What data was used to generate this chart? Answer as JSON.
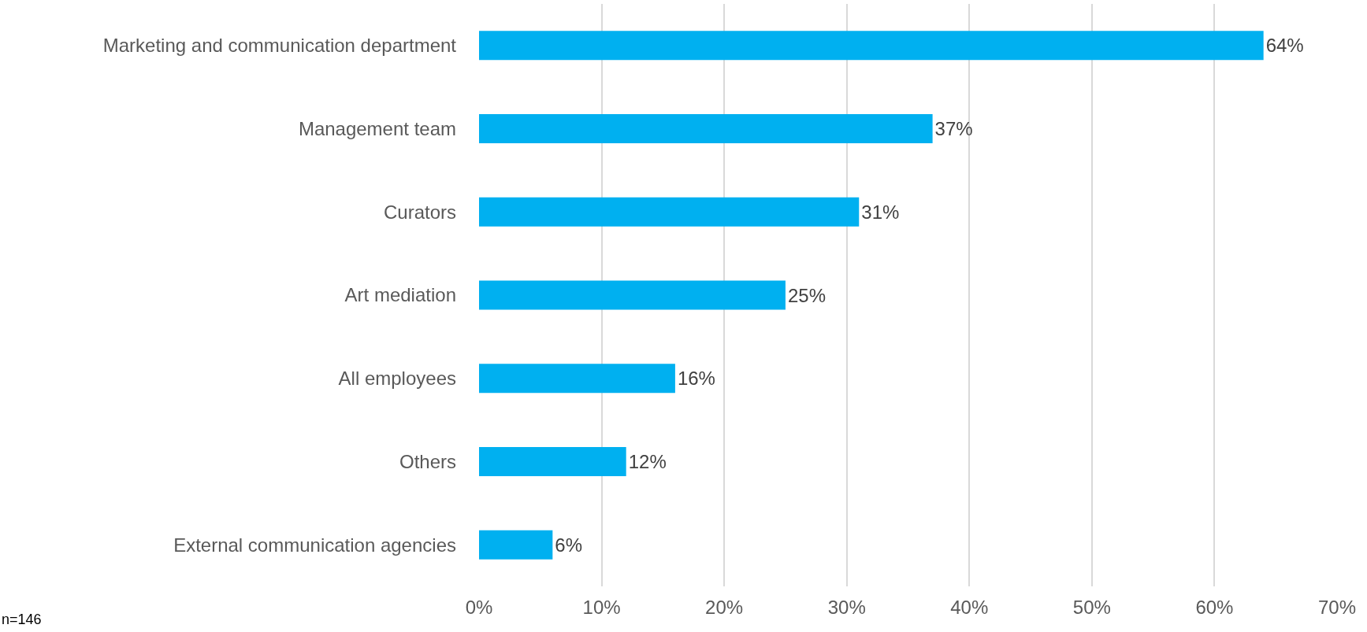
{
  "chart_data": {
    "type": "bar",
    "orientation": "horizontal",
    "categories": [
      "Marketing and communication department",
      "Management team",
      "Curators",
      "Art mediation",
      "All employees",
      "Others",
      "External communication agencies"
    ],
    "values": [
      64,
      37,
      31,
      25,
      16,
      12,
      6
    ],
    "value_labels": [
      "64%",
      "37%",
      "31%",
      "25%",
      "16%",
      "12%",
      "6%"
    ],
    "color": "#00b0f0",
    "xlim": [
      0,
      70
    ],
    "xticks": [
      {
        "value": 0,
        "label": "0%"
      },
      {
        "value": 10,
        "label": "10%"
      },
      {
        "value": 20,
        "label": "20%"
      },
      {
        "value": 30,
        "label": "30%"
      },
      {
        "value": 40,
        "label": "40%"
      },
      {
        "value": 50,
        "label": "50%"
      },
      {
        "value": 60,
        "label": "60%"
      },
      {
        "value": 70,
        "label": "70%"
      }
    ],
    "grid": "x",
    "annotations": [
      "n=146"
    ]
  }
}
